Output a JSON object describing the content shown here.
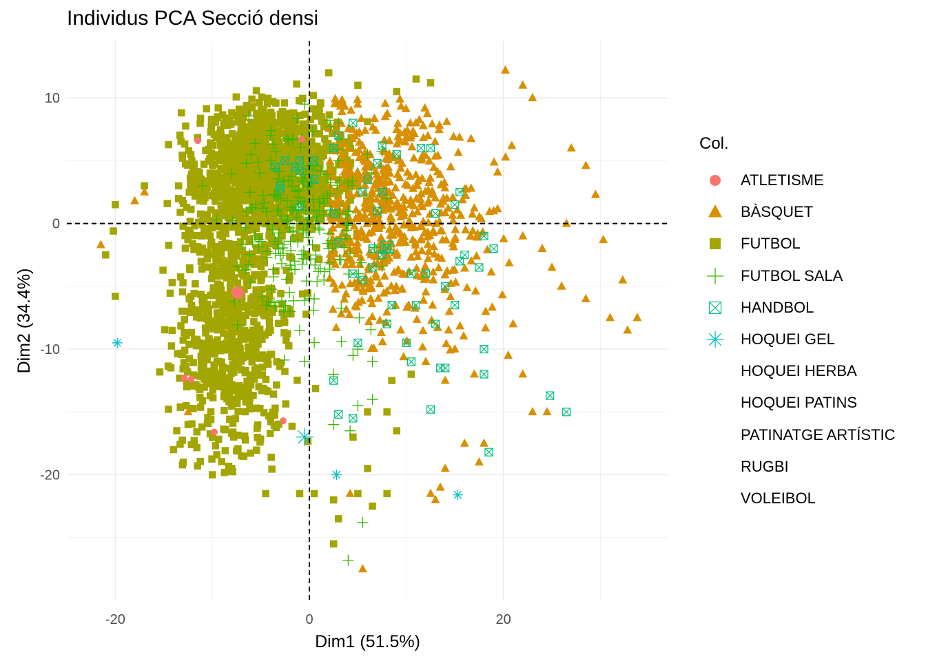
{
  "chart_data": {
    "type": "scatter",
    "title": "Individus PCA Secció densi",
    "xlabel": "Dim1 (51.5%)",
    "ylabel": "Dim2 (34.4%)",
    "xlim": [
      -25,
      37
    ],
    "ylim": [
      -30,
      14.5
    ],
    "xticks": [
      -20,
      0,
      20
    ],
    "yticks": [
      -20,
      -10,
      0,
      10
    ],
    "xtick_labels": [
      "-20",
      "0",
      "20"
    ],
    "ytick_labels": [
      "-20",
      "-10",
      "0",
      "10"
    ],
    "grid": true,
    "reference_lines": {
      "x": 0,
      "y": 0,
      "style": "dashed"
    },
    "legend": {
      "title": "Col.",
      "placement": "right",
      "entries": [
        {
          "label": "ATLETISME",
          "color": "#F8766D",
          "shape": "circle"
        },
        {
          "label": "BÀSQUET",
          "color": "#D89000",
          "shape": "triangle"
        },
        {
          "label": "FUTBOL",
          "color": "#A3A500",
          "shape": "square"
        },
        {
          "label": "FUTBOL SALA",
          "color": "#39B600",
          "shape": "plus"
        },
        {
          "label": "HANDBOL",
          "color": "#00BF7D",
          "shape": "square-cross"
        },
        {
          "label": "HOQUEI GEL",
          "color": "#00BFC4",
          "shape": "asterisk"
        },
        {
          "label": "HOQUEI HERBA",
          "color": "#00B0F6",
          "shape": "none"
        },
        {
          "label": "HOQUEI PATINS",
          "color": "#9590FF",
          "shape": "none"
        },
        {
          "label": "PATINATGE ARTÍSTIC",
          "color": "#E76BF3",
          "shape": "none"
        },
        {
          "label": "RUGBI",
          "color": "#FF62BC",
          "shape": "none"
        },
        {
          "label": "VOLEIBOL",
          "color": "#FF6C9F",
          "shape": "none"
        }
      ]
    },
    "series": [
      {
        "name": "ATLETISME",
        "color": "#F8766D",
        "shape": "circle",
        "points": [
          [
            -11.5,
            6.6
          ],
          [
            -12.9,
            -12.3
          ],
          [
            -12.2,
            -12.4
          ],
          [
            -9.8,
            -16.6
          ],
          [
            -2.7,
            -15.7
          ],
          [
            -0.8,
            6.7
          ]
        ],
        "centroid": [
          -7.4,
          -5.5
        ]
      },
      {
        "name": "BÀSQUET",
        "color": "#D89000",
        "shape": "triangle",
        "points": [
          [
            20.2,
            12.2
          ],
          [
            22.0,
            11.0
          ],
          [
            23.0,
            10.0
          ],
          [
            27.0,
            6.0
          ],
          [
            28.5,
            4.6
          ],
          [
            29.5,
            2.3
          ],
          [
            26.5,
            0.0
          ],
          [
            30.3,
            -1.3
          ],
          [
            32.3,
            -4.5
          ],
          [
            33.8,
            -7.5
          ],
          [
            32.8,
            -8.5
          ],
          [
            31.0,
            -7.5
          ],
          [
            28.5,
            -6.0
          ],
          [
            21.0,
            -8.0
          ],
          [
            20.5,
            -10.5
          ],
          [
            17.0,
            -12.0
          ],
          [
            14.0,
            -12.5
          ],
          [
            22.0,
            -12.0
          ],
          [
            23.0,
            -15.0
          ],
          [
            24.5,
            -15.0
          ],
          [
            18.0,
            -17.5
          ],
          [
            17.5,
            -19.0
          ],
          [
            16.0,
            -17.5
          ],
          [
            14.0,
            -19.5
          ],
          [
            13.5,
            -21.0
          ],
          [
            12.5,
            -21.5
          ],
          [
            13.0,
            -22.0
          ],
          [
            4.2,
            -21.5
          ],
          [
            5.5,
            -27.5
          ],
          [
            -21.5,
            -1.7
          ],
          [
            -18.0,
            1.8
          ],
          [
            -17.0,
            2.5
          ],
          [
            -12.5,
            -15.0
          ],
          [
            12.0,
            -11.0
          ],
          [
            15.0,
            -10.0
          ],
          [
            26.0,
            -5.0
          ],
          [
            25.0,
            -3.5
          ],
          [
            24.0,
            -2.0
          ],
          [
            22.0,
            -1.0
          ],
          [
            19.0,
            1.0
          ]
        ],
        "cloud": {
          "count": 580,
          "x_range": [
            2,
            24
          ],
          "y_range": [
            -11,
            10
          ]
        },
        "centroid": [
          9.5,
          1.0
        ]
      },
      {
        "name": "FUTBOL",
        "color": "#A3A500",
        "shape": "square",
        "points": [
          [
            -20.0,
            -5.8
          ],
          [
            -20.2,
            -0.6
          ],
          [
            -21.0,
            -2.5
          ],
          [
            -20.0,
            1.5
          ],
          [
            -17.0,
            3.0
          ],
          [
            -14.0,
            -18.0
          ],
          [
            -12.5,
            -16.0
          ],
          [
            -13.0,
            -19.0
          ],
          [
            -8.0,
            -19.5
          ],
          [
            -7.0,
            -18.5
          ],
          [
            -10.0,
            -20.0
          ],
          [
            -4.5,
            -21.5
          ],
          [
            -1.0,
            -21.5
          ],
          [
            0.5,
            -21.5
          ],
          [
            2.5,
            -22.0
          ],
          [
            3.0,
            -23.5
          ],
          [
            2.5,
            -25.5
          ],
          [
            5.0,
            -21.5
          ],
          [
            6.5,
            -22.5
          ],
          [
            8.0,
            -21.5
          ],
          [
            6.0,
            -19.5
          ],
          [
            4.5,
            -17.0
          ],
          [
            6.0,
            -15.0
          ],
          [
            8.0,
            -15.0
          ],
          [
            9.0,
            -16.5
          ],
          [
            10.5,
            -12.0
          ],
          [
            8.5,
            -12.5
          ],
          [
            12.5,
            11.2
          ],
          [
            11.0,
            11.5
          ],
          [
            9.0,
            10.5
          ],
          [
            5.0,
            11.0
          ],
          [
            2.0,
            12.0
          ]
        ],
        "cloud": {
          "count": 1800,
          "x_range": [
            -21,
            8
          ],
          "y_range": [
            -20,
            11.5
          ]
        },
        "centroid": [
          -4.0,
          0.5
        ]
      },
      {
        "name": "FUTBOL SALA",
        "color": "#39B600",
        "shape": "plus",
        "points": [
          [
            -0.5,
            9.5
          ],
          [
            3.0,
            8.0
          ],
          [
            5.0,
            -10.0
          ],
          [
            4.5,
            -10.5
          ],
          [
            6.5,
            -11.0
          ],
          [
            2.5,
            -12.0
          ],
          [
            6.5,
            -14.0
          ],
          [
            5.0,
            -14.5
          ],
          [
            2.5,
            -16.0
          ],
          [
            4.2,
            -16.5
          ],
          [
            5.5,
            -23.8
          ],
          [
            4.0,
            -26.8
          ],
          [
            -1.0,
            -8.5
          ],
          [
            -2.0,
            -7.0
          ],
          [
            0.5,
            -6.0
          ],
          [
            -0.5,
            -11.0
          ],
          [
            3.0,
            5.0
          ],
          [
            6.0,
            5.5
          ],
          [
            8.0,
            2.0
          ],
          [
            1.0,
            1.0
          ],
          [
            -3.0,
            2.0
          ],
          [
            -6.0,
            5.5
          ],
          [
            -8.0,
            4.0
          ],
          [
            -11.0,
            3.0
          ],
          [
            -4.0,
            7.0
          ],
          [
            1.5,
            -4.5
          ],
          [
            -1.5,
            -3.0
          ],
          [
            2.0,
            -2.0
          ]
        ],
        "cloud": {
          "count": 200,
          "x_range": [
            -12,
            8
          ],
          "y_range": [
            -14,
            10
          ]
        },
        "centroid": [
          -1.0,
          0.0
        ]
      },
      {
        "name": "HANDBOL",
        "color": "#00BF7D",
        "shape": "square-cross",
        "points": [
          [
            18.5,
            -18.2
          ],
          [
            26.5,
            -15.0
          ],
          [
            24.8,
            -13.7
          ],
          [
            12.5,
            -14.8
          ],
          [
            3.0,
            -15.2
          ],
          [
            2.5,
            -12.5
          ],
          [
            4.5,
            -15.5
          ],
          [
            13.5,
            -11.5
          ],
          [
            14.0,
            -11.5
          ],
          [
            18.0,
            -12.0
          ],
          [
            10.5,
            -11.0
          ],
          [
            18.0,
            -10.0
          ],
          [
            10.0,
            -9.5
          ],
          [
            5.0,
            -9.5
          ],
          [
            8.0,
            -8.0
          ],
          [
            11.0,
            -6.5
          ],
          [
            8.5,
            -6.5
          ],
          [
            15.0,
            -6.5
          ],
          [
            13.0,
            -8.0
          ],
          [
            14.0,
            -5.0
          ],
          [
            16.0,
            -2.5
          ],
          [
            18.0,
            -1.0
          ],
          [
            12.0,
            -4.0
          ],
          [
            10.5,
            -4.0
          ],
          [
            15.5,
            -3.0
          ],
          [
            17.5,
            -3.5
          ],
          [
            19.0,
            -2.0
          ],
          [
            6.5,
            -3.5
          ],
          [
            5.5,
            -4.5
          ],
          [
            4.5,
            -4.0
          ],
          [
            15.5,
            2.5
          ],
          [
            15.0,
            1.5
          ],
          [
            13.0,
            0.8
          ],
          [
            12.5,
            6.0
          ],
          [
            11.5,
            6.0
          ],
          [
            9.0,
            5.5
          ],
          [
            7.5,
            6.2
          ],
          [
            7.0,
            4.8
          ],
          [
            7.5,
            2.5
          ],
          [
            8.0,
            -2.0
          ],
          [
            7.5,
            -2.5
          ],
          [
            6.5,
            -2.0
          ],
          [
            3.0,
            -1.5
          ],
          [
            2.5,
            0.8
          ],
          [
            -1.0,
            1.3
          ],
          [
            -1.0,
            4.2
          ],
          [
            -3.0,
            3.0
          ],
          [
            -2.5,
            5.0
          ],
          [
            -3.0,
            2.8
          ],
          [
            -3.5,
            4.5
          ],
          [
            -1.0,
            5.0
          ],
          [
            0.5,
            3.5
          ],
          [
            2.5,
            6.0
          ],
          [
            3.0,
            7.0
          ],
          [
            4.5,
            8.0
          ],
          [
            -1.5,
            4.5
          ],
          [
            0.5,
            5.0
          ],
          [
            6.0,
            3.5
          ],
          [
            5.5,
            2.5
          ],
          [
            7.0,
            1.0
          ]
        ],
        "centroid": [
          8.0,
          -1.9
        ]
      },
      {
        "name": "HOQUEI GEL",
        "color": "#00BFC4",
        "shape": "asterisk",
        "points": [
          [
            -19.8,
            -9.5
          ],
          [
            2.8,
            -20.0
          ],
          [
            15.3,
            -21.6
          ]
        ],
        "centroid": [
          -0.5,
          -17.0
        ]
      }
    ]
  }
}
